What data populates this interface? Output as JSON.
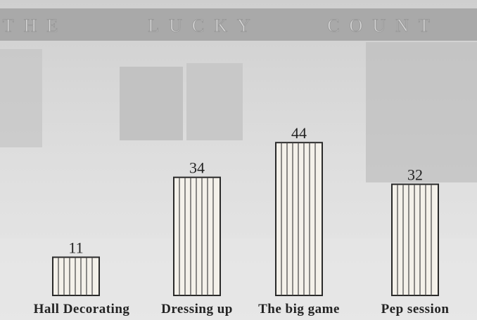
{
  "chart_data": {
    "type": "bar",
    "banner": [
      "THE",
      "LUCKY",
      "COUNT"
    ],
    "categories": [
      "Hall Decorating",
      "Dressing up",
      "The big game",
      "Pep session"
    ],
    "values": [
      11,
      34,
      44,
      32
    ],
    "color": "#f4f1ea"
  }
}
